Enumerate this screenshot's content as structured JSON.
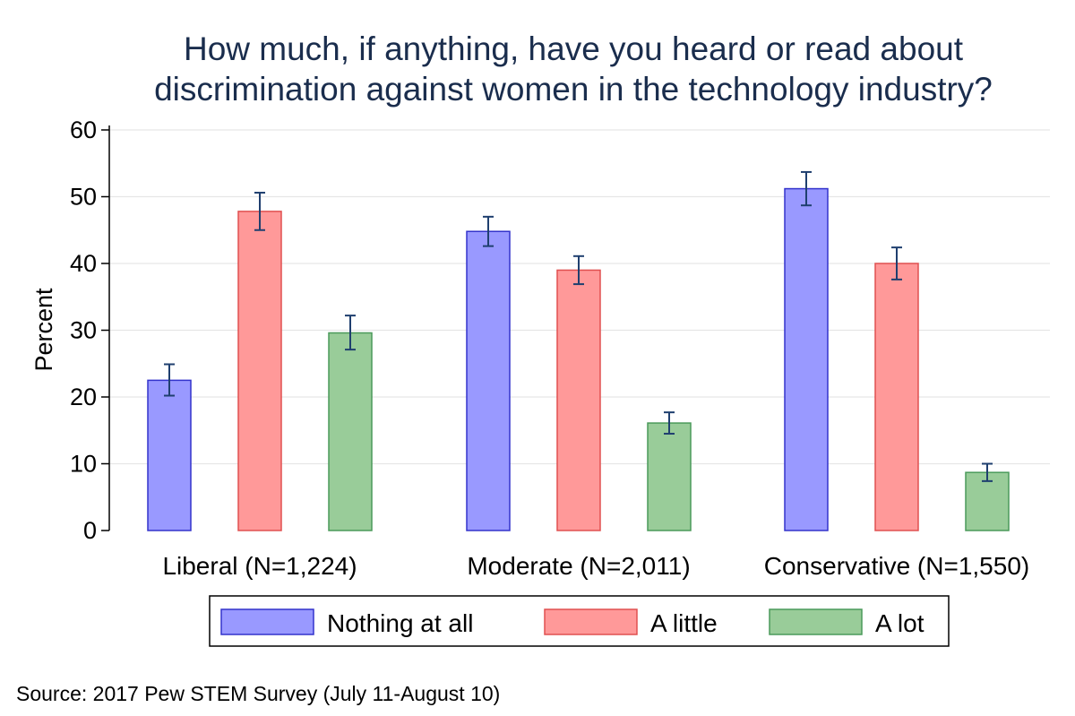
{
  "chart_data": {
    "type": "bar",
    "title_lines": [
      "How much, if anything, have you heard or read about",
      "discrimination against women in the technology industry?"
    ],
    "ylabel": "Percent",
    "ylim": [
      0,
      60
    ],
    "yticks": [
      "0",
      "10",
      "20",
      "30",
      "40",
      "50",
      "60"
    ],
    "grid": true,
    "categories": [
      "Liberal (N=1,224)",
      "Moderate (N=2,011)",
      "Conservative (N=1,550)"
    ],
    "series": [
      {
        "name": "Nothing at all",
        "color": "#9999ff",
        "edge": "#3333cc",
        "values": [
          22.5,
          44.8,
          51.2
        ],
        "ci_low": [
          20.2,
          42.6,
          48.7
        ],
        "ci_high": [
          24.9,
          47.0,
          53.7
        ]
      },
      {
        "name": "A little",
        "color": "#ff9999",
        "edge": "#e05050",
        "values": [
          47.8,
          39.0,
          40.0
        ],
        "ci_low": [
          45.0,
          36.9,
          37.6
        ],
        "ci_high": [
          50.6,
          41.1,
          42.4
        ]
      },
      {
        "name": "A lot",
        "color": "#99cc99",
        "edge": "#4a9a5a",
        "values": [
          29.6,
          16.1,
          8.7
        ],
        "ci_low": [
          27.1,
          14.5,
          7.4
        ],
        "ci_high": [
          32.2,
          17.7,
          10.0
        ]
      }
    ],
    "legend_position": "bottom",
    "source": "Source: 2017 Pew STEM Survey (July 11-August 10)"
  }
}
